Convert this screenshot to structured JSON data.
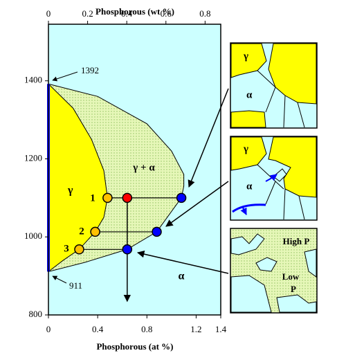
{
  "chart_data": {
    "type": "phase",
    "x_label": "Phosphorous (at %)",
    "x2_label": "Phosphorous (wt %)",
    "xlim": [
      0,
      1.4
    ],
    "xticks": [
      0,
      0.4,
      0.8,
      1.2,
      1.4
    ],
    "x2lim": [
      0,
      0.88
    ],
    "x2ticks": [
      0,
      0.2,
      0.4,
      0.6,
      0.8
    ],
    "ylim": [
      800,
      1545
    ],
    "yticks": [
      800,
      1000,
      1200,
      1400
    ],
    "background": "#ccffff",
    "series": [
      {
        "kind": "hatched",
        "color": "#e6f7b8",
        "x": [
          0,
          0.4,
          0.8,
          1.0,
          1.1,
          1.1,
          1.08,
          0.88,
          0.64,
          0.3,
          0
        ],
        "values": [
          1392,
          1360,
          1290,
          1220,
          1160,
          1130,
          1100,
          1013,
          968,
          935,
          911
        ]
      },
      {
        "kind": "area",
        "color": "#ffff00",
        "x": [
          0,
          0.2,
          0.35,
          0.45,
          0.48,
          0.45,
          0.38,
          0.25,
          0.12,
          0
        ],
        "values": [
          1392,
          1330,
          1250,
          1170,
          1100,
          1050,
          1013,
          968,
          940,
          911
        ]
      },
      {
        "kind": "edge",
        "color": "#0000ff",
        "x": [
          0,
          0
        ],
        "values": [
          911,
          1392
        ]
      },
      {
        "kind": "line",
        "color": "#000000",
        "x": [
          0.48,
          1.08
        ],
        "values": [
          1100,
          1100
        ]
      },
      {
        "kind": "line",
        "color": "#000000",
        "x": [
          0.38,
          0.88
        ],
        "values": [
          1013,
          1013
        ]
      },
      {
        "kind": "line",
        "color": "#000000",
        "x": [
          0.25,
          0.64
        ],
        "values": [
          968,
          968
        ]
      },
      {
        "kind": "arrow",
        "color": "#000000",
        "x": [
          0.64,
          0.64
        ],
        "values": [
          1100,
          835
        ]
      },
      {
        "kind": "points",
        "color": "#ffc000",
        "x": [
          0.48,
          0.38,
          0.25
        ],
        "values": [
          1100,
          1013,
          968
        ]
      },
      {
        "kind": "points",
        "color": "#ff0000",
        "x": [
          0.64
        ],
        "values": [
          1100
        ]
      },
      {
        "kind": "points",
        "color": "#0000ff",
        "x": [
          1.08,
          0.88,
          0.64
        ],
        "values": [
          1100,
          1013,
          968
        ]
      }
    ],
    "annotations": [
      "1392",
      "911",
      "γ",
      "γ + α",
      "α",
      "1",
      "2",
      "3"
    ],
    "panels": [
      [
        "γ",
        "α"
      ],
      [
        "γ",
        "α"
      ],
      [
        "High P",
        "Low",
        "P"
      ]
    ]
  }
}
